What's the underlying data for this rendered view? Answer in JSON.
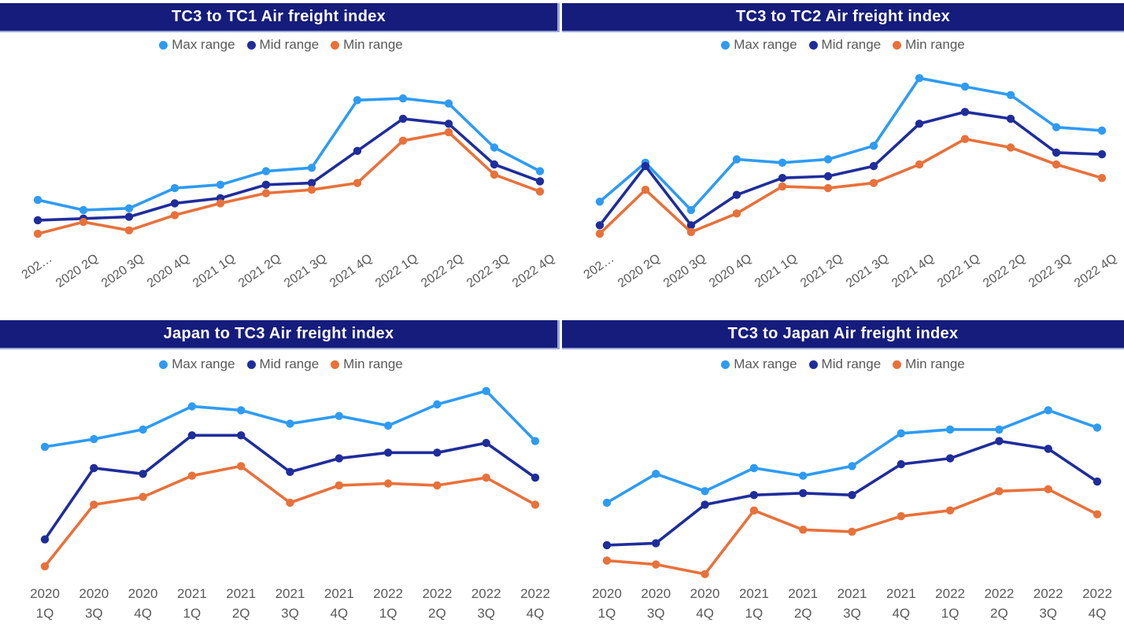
{
  "colors": {
    "page_bg": "#ffffff",
    "title_bar_bg": "#151C7C",
    "title_text": "#ffffff",
    "bar_border": "#99A5D4",
    "axis_text": "#595959",
    "legend_text": "#595959",
    "max_series": "#2E9BF3",
    "mid_series": "#1F2D9B",
    "min_series": "#E8713A"
  },
  "chart_data": [
    {
      "type": "line",
      "title": "TC3 to TC1 Air freight index",
      "legend_position": "top-center",
      "grid": false,
      "y_axis": {
        "visible": false,
        "range_estimated": [
          0,
          105
        ]
      },
      "x_label_style": "rotated",
      "categories": [
        "202…",
        "2020 2Q",
        "2020 3Q",
        "2020 4Q",
        "2021 1Q",
        "2021 2Q",
        "2021 3Q",
        "2021 4Q",
        "2022 1Q",
        "2022 2Q",
        "2022 3Q",
        "2022 4Q"
      ],
      "series": [
        {
          "name": "Max range",
          "color": "#2E9BF3",
          "values": [
            26,
            20,
            21,
            33,
            35,
            43,
            45,
            85,
            86,
            83,
            57,
            43
          ]
        },
        {
          "name": "Mid range",
          "color": "#1F2D9B",
          "values": [
            14,
            15,
            16,
            24,
            27,
            35,
            36,
            55,
            74,
            71,
            47,
            37
          ]
        },
        {
          "name": "Min range",
          "color": "#E8713A",
          "values": [
            6,
            13,
            8,
            17,
            24,
            30,
            32,
            36,
            61,
            66,
            41,
            31
          ]
        }
      ]
    },
    {
      "type": "line",
      "title": "TC3 to TC2 Air freight index",
      "legend_position": "top-center",
      "grid": false,
      "y_axis": {
        "visible": false,
        "range_estimated": [
          0,
          105
        ]
      },
      "x_label_style": "rotated",
      "categories": [
        "202…",
        "2020 2Q",
        "2020 3Q",
        "2020 4Q",
        "2021 1Q",
        "2021 2Q",
        "2021 3Q",
        "2021 4Q",
        "2022 1Q",
        "2022 2Q",
        "2022 3Q",
        "2022 4Q"
      ],
      "series": [
        {
          "name": "Max range",
          "color": "#2E9BF3",
          "values": [
            25,
            48,
            20,
            50,
            48,
            50,
            58,
            98,
            93,
            88,
            69,
            67
          ]
        },
        {
          "name": "Mid range",
          "color": "#1F2D9B",
          "values": [
            11,
            46,
            11,
            29,
            39,
            40,
            46,
            71,
            78,
            74,
            54,
            53
          ]
        },
        {
          "name": "Min range",
          "color": "#E8713A",
          "values": [
            6,
            32,
            7,
            18,
            34,
            33,
            36,
            47,
            62,
            57,
            47,
            39
          ]
        }
      ]
    },
    {
      "type": "line",
      "title": "Japan to TC3 Air freight index",
      "legend_position": "top-center",
      "grid": false,
      "y_axis": {
        "visible": false,
        "range_estimated": [
          0,
          105
        ]
      },
      "x_label_style": "two-line",
      "categories": [
        "2020 1Q",
        "2020 3Q",
        "2020 4Q",
        "2021 1Q",
        "2021 2Q",
        "2021 3Q",
        "2021 4Q",
        "2022 1Q",
        "2022 2Q",
        "2022 3Q",
        "2022 4Q"
      ],
      "series": [
        {
          "name": "Max range",
          "color": "#2E9BF3",
          "values": [
            69,
            73,
            78,
            90,
            88,
            81,
            85,
            80,
            91,
            98,
            72
          ]
        },
        {
          "name": "Mid range",
          "color": "#1F2D9B",
          "values": [
            21,
            58,
            55,
            75,
            75,
            56,
            63,
            66,
            66,
            71,
            53
          ]
        },
        {
          "name": "Min range",
          "color": "#E8713A",
          "values": [
            7,
            39,
            43,
            54,
            59,
            40,
            49,
            50,
            49,
            53,
            39
          ]
        }
      ]
    },
    {
      "type": "line",
      "title": "TC3 to Japan Air freight index",
      "legend_position": "top-center",
      "grid": false,
      "y_axis": {
        "visible": false,
        "range_estimated": [
          0,
          105
        ]
      },
      "x_label_style": "two-line",
      "categories": [
        "2020 1Q",
        "2020 3Q",
        "2020 4Q",
        "2021 1Q",
        "2021 2Q",
        "2021 3Q",
        "2021 4Q",
        "2022 1Q",
        "2022 2Q",
        "2022 3Q",
        "2022 4Q"
      ],
      "series": [
        {
          "name": "Max range",
          "color": "#2E9BF3",
          "values": [
            40,
            55,
            46,
            58,
            54,
            59,
            76,
            78,
            78,
            88,
            79
          ]
        },
        {
          "name": "Mid range",
          "color": "#1F2D9B",
          "values": [
            18,
            19,
            39,
            44,
            45,
            44,
            60,
            63,
            72,
            68,
            51
          ]
        },
        {
          "name": "Min range",
          "color": "#E8713A",
          "values": [
            10,
            8,
            3,
            36,
            26,
            25,
            33,
            36,
            46,
            47,
            34
          ]
        }
      ]
    }
  ]
}
